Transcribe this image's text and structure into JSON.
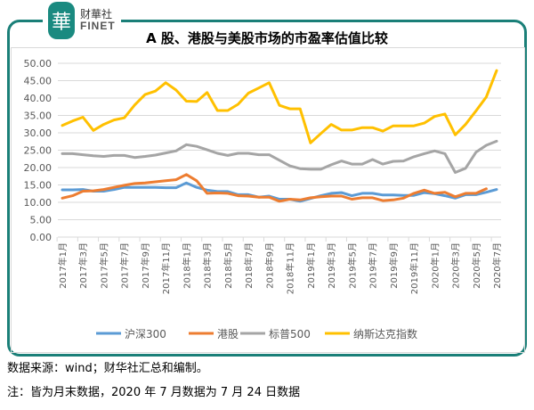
{
  "brand": {
    "cn": "财華社",
    "en": "FINET",
    "seal": "華"
  },
  "footer": {
    "source": "数据来源：wind；财华社汇总和编制。",
    "note": "注：皆为月末数据，2020 年 7 月数据为 7 月 24 日数据"
  },
  "chart_data": {
    "type": "line",
    "title": "A 股、港股与美股市场的市盈率估值比较",
    "xlabel": "",
    "ylabel": "",
    "ylim": [
      0,
      50
    ],
    "yticks": [
      "0.00",
      "5.00",
      "10.00",
      "15.00",
      "20.00",
      "25.00",
      "30.00",
      "35.00",
      "40.00",
      "45.00",
      "50.00"
    ],
    "grid": true,
    "legend": "bottom",
    "x": [
      "2017年1月",
      "2017年2月",
      "2017年3月",
      "2017年4月",
      "2017年5月",
      "2017年6月",
      "2017年7月",
      "2017年8月",
      "2017年9月",
      "2017年10月",
      "2017年11月",
      "2017年12月",
      "2018年1月",
      "2018年2月",
      "2018年3月",
      "2018年4月",
      "2018年5月",
      "2018年6月",
      "2018年7月",
      "2018年8月",
      "2018年9月",
      "2018年10月",
      "2018年11月",
      "2018年12月",
      "2019年1月",
      "2019年2月",
      "2019年3月",
      "2019年4月",
      "2019年5月",
      "2019年6月",
      "2019年7月",
      "2019年8月",
      "2019年9月",
      "2019年10月",
      "2019年11月",
      "2019年12月",
      "2020年1月",
      "2020年2月",
      "2020年3月",
      "2020年4月",
      "2020年5月",
      "2020年6月",
      "2020年7月"
    ],
    "xtick_labels": [
      "2017年1月",
      "2017年3月",
      "2017年5月",
      "2017年7月",
      "2017年9月",
      "2017年11月",
      "2018年1月",
      "2018年3月",
      "2018年5月",
      "2018年7月",
      "2018年9月",
      "2018年11月",
      "2019年1月",
      "2019年3月",
      "2019年5月",
      "2019年7月",
      "2019年9月",
      "2019年11月",
      "2020年1月",
      "2020年3月",
      "2020年5月",
      "2020年7月"
    ],
    "series": [
      {
        "name": "沪深300",
        "color": "#5B9BD5",
        "values": [
          13.6,
          13.6,
          13.7,
          13.2,
          13.2,
          13.7,
          14.3,
          14.3,
          14.3,
          14.3,
          14.2,
          14.2,
          15.6,
          14.3,
          13.5,
          13.1,
          13.1,
          12.2,
          12.2,
          11.5,
          11.8,
          10.9,
          10.9,
          10.3,
          11.1,
          11.9,
          12.6,
          12.8,
          11.9,
          12.6,
          12.6,
          12.1,
          12.1,
          12.0,
          12.0,
          12.8,
          12.5,
          11.9,
          11.2,
          12.2,
          12.2,
          12.9,
          13.7
        ]
      },
      {
        "name": "港股",
        "color": "#ED7D31",
        "values": [
          11.2,
          11.9,
          13.2,
          13.3,
          13.7,
          14.3,
          14.9,
          15.4,
          15.6,
          15.9,
          16.2,
          16.5,
          18.0,
          16.2,
          12.6,
          12.7,
          12.6,
          11.9,
          11.8,
          11.5,
          11.5,
          10.3,
          10.9,
          10.7,
          11.3,
          11.6,
          11.8,
          11.8,
          10.9,
          11.3,
          11.3,
          10.5,
          10.7,
          11.2,
          12.6,
          13.5,
          12.6,
          12.9,
          11.6,
          12.6,
          12.6,
          13.9,
          null
        ]
      },
      {
        "name": "标普500",
        "color": "#A5A5A5",
        "values": [
          24.0,
          24.0,
          23.7,
          23.4,
          23.2,
          23.5,
          23.5,
          22.9,
          23.2,
          23.6,
          24.2,
          24.8,
          26.6,
          26.1,
          25.1,
          24.1,
          23.5,
          24.1,
          24.1,
          23.7,
          23.7,
          22.1,
          20.5,
          19.7,
          19.5,
          19.5,
          20.8,
          21.9,
          21.0,
          21.0,
          22.3,
          21.0,
          21.8,
          21.9,
          23.1,
          24.0,
          24.8,
          24.0,
          18.6,
          19.8,
          24.4,
          26.4,
          27.6
        ]
      },
      {
        "name": "纳斯达克指数",
        "color": "#FFC000",
        "values": [
          32.1,
          33.4,
          34.5,
          30.7,
          32.4,
          33.7,
          34.3,
          38.0,
          41.0,
          42.0,
          44.4,
          42.3,
          39.1,
          39.0,
          41.6,
          36.4,
          36.4,
          38.2,
          41.4,
          42.9,
          44.4,
          37.9,
          36.9,
          36.9,
          27.1,
          29.8,
          32.4,
          30.8,
          30.8,
          31.5,
          31.5,
          30.5,
          32.0,
          32.0,
          32.0,
          32.8,
          34.7,
          35.4,
          29.4,
          32.4,
          36.3,
          40.3,
          47.9
        ]
      }
    ]
  }
}
